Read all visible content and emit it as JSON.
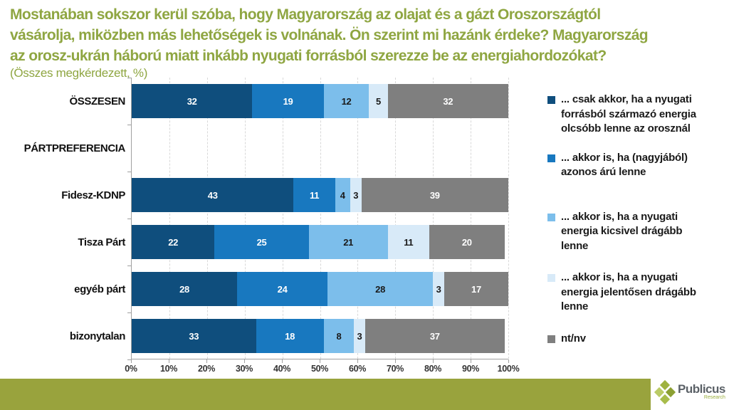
{
  "header": {
    "title_lines": [
      "Mostanában sokszor kerül szóba, hogy Magyarország az olajat és a gázt Oroszországtól",
      "vásárolja, miközben más lehetőségek is volnának. Ön szerint mi hazánk érdeke? Magyarország",
      "az orosz-ukrán háború miatt inkább nyugati forrásból szerezze be az energiahordozókat?"
    ],
    "subtitle": "(Összes megkérdezett, %)",
    "title_color": "#8fa642"
  },
  "chart_data": {
    "type": "bar",
    "orientation": "horizontal-stacked",
    "unit": "%",
    "grid": "dashed-vertical",
    "xlim": [
      0,
      100
    ],
    "x_ticks": [
      "0%",
      "10%",
      "20%",
      "30%",
      "40%",
      "50%",
      "60%",
      "70%",
      "80%",
      "90%",
      "100%"
    ],
    "categories": [
      "ÖSSZESEN",
      "PÁRTPREFERENCIA",
      "Fidesz-KDNP",
      "Tisza Párt",
      "egyéb párt",
      "bizonytalan"
    ],
    "series": [
      {
        "name": "... csak akkor, ha a nyugati forrásból származó energia olcsóbb lenne az orosznál",
        "color": "#0f4e7d",
        "value_text_color": "#ffffff",
        "values": [
          32,
          null,
          43,
          22,
          28,
          33
        ]
      },
      {
        "name": "... akkor is, ha (nagyjából) azonos árú lenne",
        "color": "#1878bf",
        "value_text_color": "#ffffff",
        "values": [
          19,
          null,
          11,
          25,
          24,
          18
        ]
      },
      {
        "name": "... akkor is, ha a nyugati energia kicsivel drágább lenne",
        "color": "#7cbeeb",
        "value_text_color": "#1a1a1a",
        "values": [
          12,
          null,
          4,
          21,
          28,
          8
        ]
      },
      {
        "name": "... akkor is, ha a nyugati energia jelentősen drágább lenne",
        "color": "#d8eaf8",
        "value_text_color": "#1a1a1a",
        "values": [
          5,
          null,
          3,
          11,
          3,
          3
        ]
      },
      {
        "name": "nt/nv",
        "color": "#7f7f7f",
        "value_text_color": "#ffffff",
        "values": [
          32,
          null,
          39,
          20,
          17,
          37
        ]
      }
    ]
  },
  "legend": {
    "items": [
      {
        "color": "#0f4e7d",
        "lines": [
          "... csak akkor, ha a nyugati",
          "forrásból származó energia",
          "olcsóbb lenne az orosznál"
        ]
      },
      {
        "color": "#1878bf",
        "lines": [
          "... akkor is, ha (nagyjából)",
          "azonos árú lenne"
        ]
      },
      {
        "color": "#7cbeeb",
        "lines": [
          "... akkor is, ha a nyugati",
          "energia kicsivel drágább",
          "lenne"
        ]
      },
      {
        "color": "#d8eaf8",
        "lines": [
          "... akkor is, ha a nyugati",
          "energia jelentősen drágább",
          "lenne"
        ]
      },
      {
        "color": "#7f7f7f",
        "lines": [
          "nt/nv"
        ]
      }
    ]
  },
  "footer": {
    "bar_color": "#99a33d",
    "brand": "Publicus",
    "brand_sub": "Research"
  }
}
